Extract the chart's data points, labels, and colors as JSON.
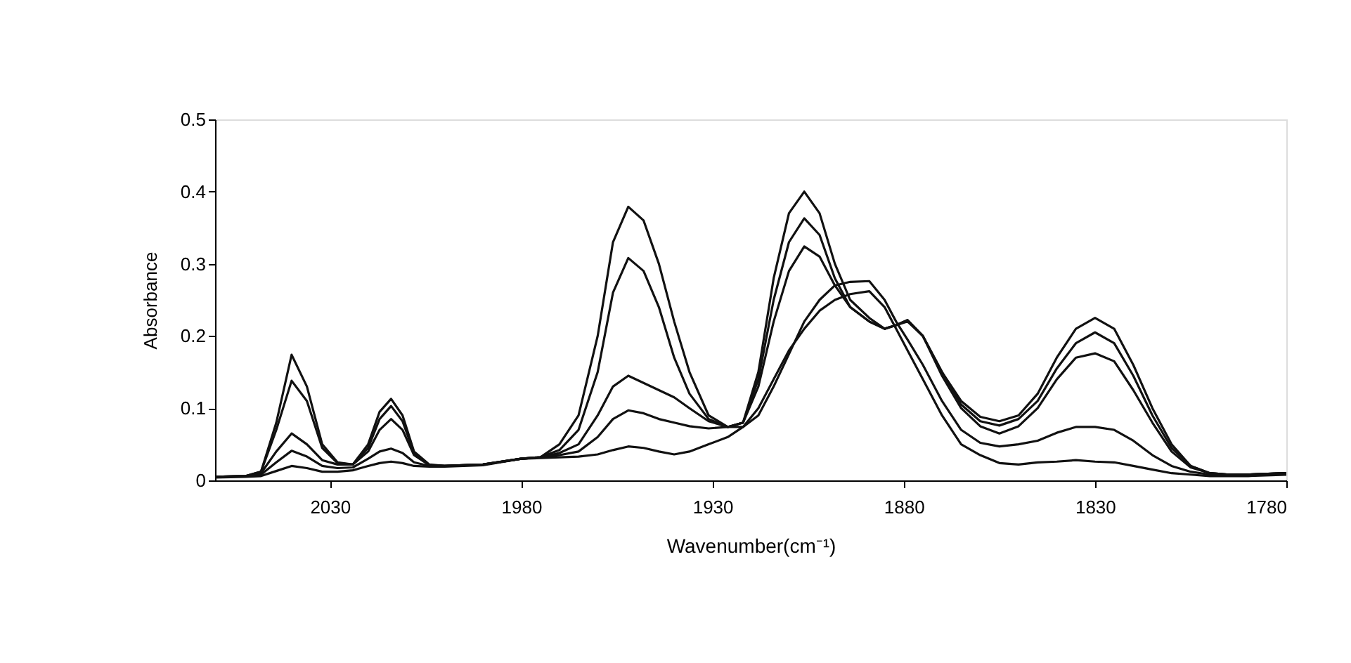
{
  "chart_data": {
    "type": "line",
    "xlabel": "Wavenumber(cm⁻¹)",
    "ylabel": "Absorbance",
    "x": [
      2060,
      2052,
      2048,
      2044,
      2040,
      2036,
      2032,
      2028,
      2024,
      2020,
      2017,
      2014,
      2011,
      2008,
      2004,
      2000,
      1990,
      1980,
      1975,
      1970,
      1965,
      1960,
      1956,
      1952,
      1948,
      1944,
      1940,
      1936,
      1931,
      1926,
      1922,
      1918,
      1914,
      1910,
      1906,
      1902,
      1898,
      1894,
      1889,
      1885,
      1882,
      1879,
      1875,
      1870,
      1865,
      1860,
      1855,
      1850,
      1845,
      1840,
      1835,
      1830,
      1825,
      1820,
      1815,
      1810,
      1805,
      1800,
      1795,
      1790,
      1780
    ],
    "series": [
      {
        "color": "#111111",
        "values": [
          0.005,
          0.006,
          0.012,
          0.08,
          0.174,
          0.13,
          0.05,
          0.025,
          0.022,
          0.05,
          0.095,
          0.113,
          0.09,
          0.04,
          0.022,
          0.02,
          0.022,
          0.03,
          0.032,
          0.05,
          0.09,
          0.2,
          0.33,
          0.379,
          0.36,
          0.3,
          0.22,
          0.15,
          0.09,
          0.074,
          0.08,
          0.15,
          0.28,
          0.37,
          0.4,
          0.37,
          0.3,
          0.25,
          0.225,
          0.21,
          0.215,
          0.222,
          0.2,
          0.15,
          0.11,
          0.088,
          0.082,
          0.09,
          0.12,
          0.17,
          0.21,
          0.225,
          0.21,
          0.16,
          0.1,
          0.05,
          0.02,
          0.01,
          0.008,
          0.008,
          0.01
        ]
      },
      {
        "color": "#111111",
        "values": [
          0.005,
          0.006,
          0.012,
          0.07,
          0.138,
          0.11,
          0.045,
          0.024,
          0.022,
          0.045,
          0.085,
          0.103,
          0.082,
          0.038,
          0.021,
          0.02,
          0.022,
          0.03,
          0.032,
          0.042,
          0.07,
          0.15,
          0.26,
          0.308,
          0.29,
          0.24,
          0.17,
          0.12,
          0.085,
          0.074,
          0.08,
          0.14,
          0.25,
          0.33,
          0.363,
          0.34,
          0.28,
          0.24,
          0.22,
          0.21,
          0.215,
          0.222,
          0.2,
          0.15,
          0.105,
          0.082,
          0.076,
          0.085,
          0.11,
          0.155,
          0.19,
          0.205,
          0.19,
          0.145,
          0.09,
          0.045,
          0.02,
          0.01,
          0.008,
          0.008,
          0.01
        ]
      },
      {
        "color": "#111111",
        "values": [
          0.005,
          0.006,
          0.01,
          0.04,
          0.065,
          0.05,
          0.028,
          0.022,
          0.022,
          0.04,
          0.07,
          0.085,
          0.07,
          0.035,
          0.021,
          0.02,
          0.022,
          0.03,
          0.032,
          0.038,
          0.05,
          0.09,
          0.13,
          0.145,
          0.135,
          0.125,
          0.115,
          0.1,
          0.082,
          0.074,
          0.08,
          0.13,
          0.22,
          0.29,
          0.324,
          0.31,
          0.27,
          0.24,
          0.22,
          0.21,
          0.215,
          0.22,
          0.2,
          0.145,
          0.1,
          0.075,
          0.065,
          0.075,
          0.1,
          0.14,
          0.17,
          0.176,
          0.165,
          0.125,
          0.08,
          0.04,
          0.018,
          0.01,
          0.008,
          0.008,
          0.01
        ]
      },
      {
        "color": "#111111",
        "values": [
          0.005,
          0.006,
          0.008,
          0.025,
          0.041,
          0.033,
          0.02,
          0.017,
          0.018,
          0.03,
          0.04,
          0.044,
          0.038,
          0.025,
          0.02,
          0.02,
          0.022,
          0.03,
          0.032,
          0.035,
          0.04,
          0.06,
          0.085,
          0.097,
          0.093,
          0.085,
          0.08,
          0.075,
          0.072,
          0.074,
          0.074,
          0.09,
          0.13,
          0.175,
          0.22,
          0.25,
          0.27,
          0.275,
          0.276,
          0.25,
          0.22,
          0.195,
          0.16,
          0.11,
          0.07,
          0.052,
          0.047,
          0.05,
          0.055,
          0.066,
          0.074,
          0.074,
          0.07,
          0.055,
          0.035,
          0.02,
          0.012,
          0.008,
          0.008,
          0.008,
          0.01
        ]
      },
      {
        "color": "#111111",
        "values": [
          0.004,
          0.005,
          0.006,
          0.013,
          0.02,
          0.017,
          0.012,
          0.012,
          0.014,
          0.02,
          0.024,
          0.026,
          0.024,
          0.02,
          0.019,
          0.019,
          0.021,
          0.03,
          0.031,
          0.032,
          0.033,
          0.036,
          0.042,
          0.047,
          0.045,
          0.04,
          0.036,
          0.04,
          0.05,
          0.06,
          0.074,
          0.1,
          0.14,
          0.18,
          0.21,
          0.235,
          0.25,
          0.258,
          0.262,
          0.24,
          0.21,
          0.18,
          0.14,
          0.09,
          0.05,
          0.035,
          0.024,
          0.022,
          0.025,
          0.026,
          0.028,
          0.026,
          0.025,
          0.02,
          0.015,
          0.01,
          0.008,
          0.006,
          0.006,
          0.006,
          0.008
        ]
      }
    ],
    "xlim": [
      2060,
      1780
    ],
    "xticks": [
      2030,
      1980,
      1930,
      1880,
      1830,
      1780
    ],
    "ylim": [
      0,
      0.5
    ],
    "yticks": [
      0,
      0.1,
      0.2,
      0.3,
      0.4,
      0.5
    ],
    "grid": false,
    "legend": false,
    "marker": "none",
    "line_style": "solid"
  }
}
